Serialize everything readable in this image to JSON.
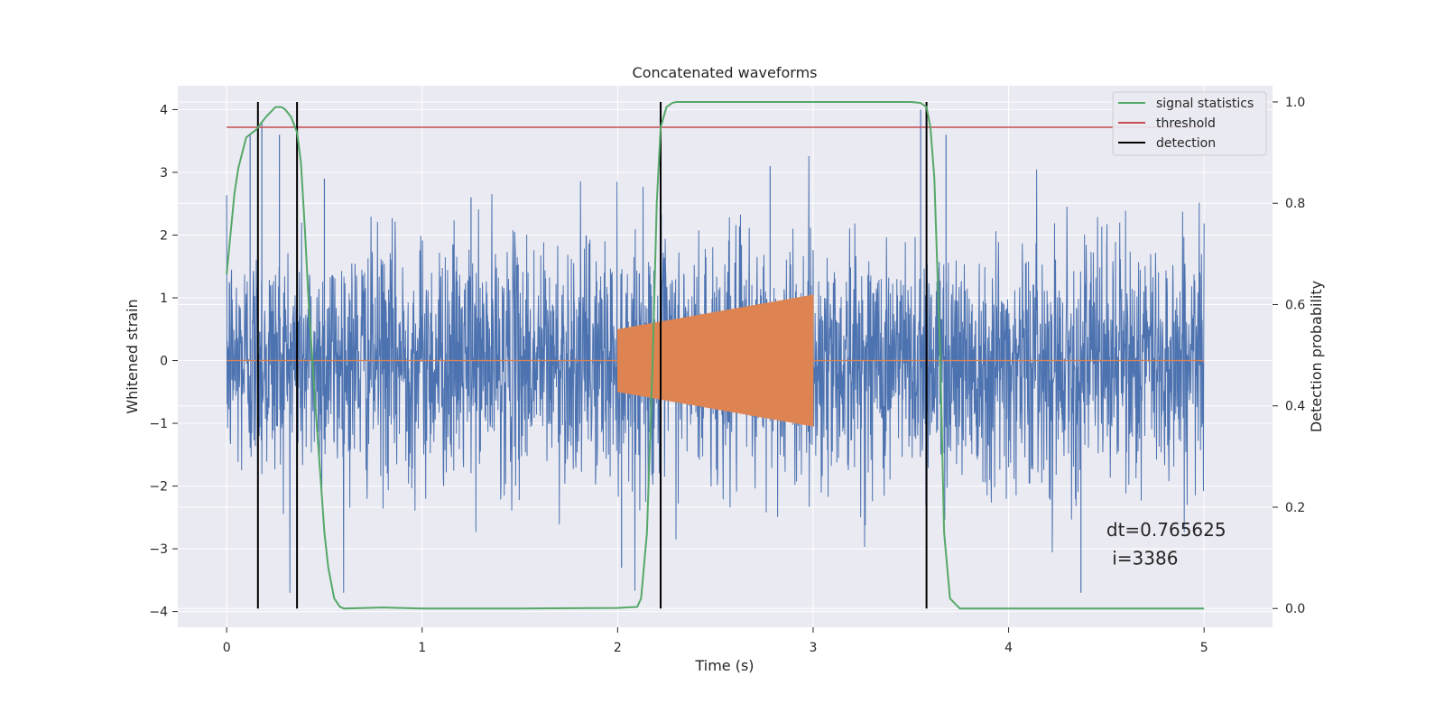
{
  "chart_data": {
    "type": "line",
    "title": "Concatenated waveforms",
    "xlabel": "Time (s)",
    "ylabel_left": "Whitened strain",
    "ylabel_right": "Detection probability",
    "xlim": [
      -0.25,
      5.35
    ],
    "ylim_left": [
      -4.25,
      4.38
    ],
    "ylim_right": [
      -0.037,
      1.032
    ],
    "x_ticks": [
      0,
      1,
      2,
      3,
      4,
      5
    ],
    "x_tick_labels": [
      "0",
      "1",
      "2",
      "3",
      "4",
      "5"
    ],
    "y_left_ticks": [
      4,
      3,
      2,
      1,
      0,
      -1,
      -2,
      -3,
      -4
    ],
    "y_left_tick_labels": [
      "4",
      "3",
      "2",
      "1",
      "0",
      "−1",
      "−2",
      "−3",
      "−4"
    ],
    "y_right_ticks": [
      1.0,
      0.8,
      0.6,
      0.4,
      0.2,
      0.0
    ],
    "y_right_tick_labels": [
      "1.0",
      "0.8",
      "0.6",
      "0.4",
      "0.2",
      "0.0"
    ],
    "grid": true,
    "legend_position": "top-right",
    "colors": {
      "strain": "#4c72b0",
      "injected": "#dd8452",
      "signal_statistics": "#55a868",
      "threshold": "#c44e52",
      "detection": "#000000",
      "plot_background": "#eaeaf2",
      "grid": "#ffffff"
    },
    "series": [
      {
        "name": "",
        "axis": "left",
        "kind": "noise",
        "x_range": [
          0,
          5
        ],
        "typical_amplitude": 2.0,
        "peak_values": [
          3.6,
          3.8,
          3.6,
          2.9,
          2.6,
          3.1,
          -3.3,
          4.0,
          -3.7
        ]
      },
      {
        "name": "",
        "axis": "left",
        "kind": "chirp",
        "baseline_x": [
          0,
          5
        ],
        "baseline_y": 0,
        "chirp_x_range": [
          2.0,
          3.0
        ],
        "amplitude_start": 0.5,
        "amplitude_end": 1.05
      },
      {
        "name": "signal statistics",
        "axis": "right",
        "x": [
          0,
          0.02,
          0.04,
          0.06,
          0.08,
          0.1,
          0.15,
          0.2,
          0.25,
          0.28,
          0.3,
          0.33,
          0.36,
          0.38,
          0.4,
          0.42,
          0.45,
          0.48,
          0.5,
          0.52,
          0.55,
          0.58,
          0.6,
          0.8,
          1.0,
          1.5,
          2.0,
          2.1,
          2.12,
          2.15,
          2.18,
          2.2,
          2.22,
          2.25,
          2.28,
          2.3,
          2.5,
          3.0,
          3.5,
          3.55,
          3.58,
          3.6,
          3.62,
          3.65,
          3.67,
          3.7,
          3.75,
          4.0,
          4.5,
          5.0
        ],
        "y": [
          0.66,
          0.74,
          0.82,
          0.87,
          0.9,
          0.93,
          0.945,
          0.97,
          0.99,
          0.99,
          0.985,
          0.97,
          0.94,
          0.88,
          0.75,
          0.6,
          0.42,
          0.26,
          0.15,
          0.08,
          0.02,
          0.003,
          0.0,
          0.002,
          0.0,
          0.0,
          0.001,
          0.003,
          0.02,
          0.15,
          0.5,
          0.8,
          0.95,
          0.99,
          0.998,
          1.0,
          1.0,
          1.0,
          1.0,
          0.998,
          0.99,
          0.95,
          0.85,
          0.5,
          0.15,
          0.02,
          0.0,
          0.0,
          0.0,
          0.0
        ]
      },
      {
        "name": "threshold",
        "axis": "right",
        "x": [
          0,
          5
        ],
        "y": [
          0.95,
          0.95
        ]
      },
      {
        "name": "detection",
        "axis": "right",
        "kind": "vlines",
        "x": [
          0.16,
          0.36,
          2.22,
          3.58
        ],
        "y_range": [
          0.0,
          1.0
        ]
      }
    ],
    "annotations": [
      {
        "text": "dt=0.765625",
        "x": 4.5,
        "y_left": -2.8
      },
      {
        "text": " i=3386",
        "x": 4.5,
        "y_left": -3.25
      }
    ],
    "legend": [
      {
        "label": "signal statistics",
        "color_key": "signal_statistics"
      },
      {
        "label": "threshold",
        "color_key": "threshold"
      },
      {
        "label": "detection",
        "color_key": "detection"
      }
    ]
  }
}
